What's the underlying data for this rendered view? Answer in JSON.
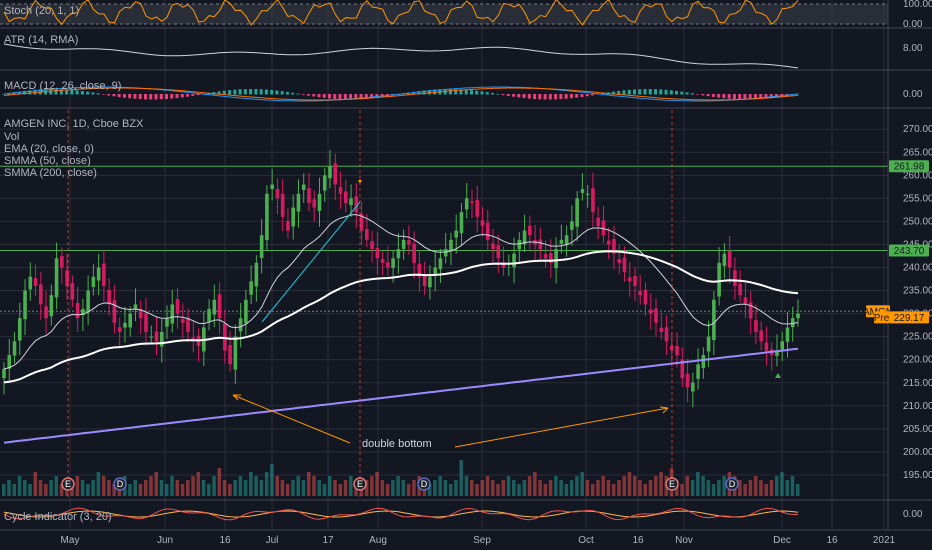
{
  "chart_data": {
    "type": "candlestick",
    "title": "AMGEN INC, 1D, Cboe BZX",
    "symbol": "AMGN",
    "ylim": [
      190,
      272
    ],
    "y_ticks": [
      "270.00",
      "265.00",
      "260.00",
      "255.00",
      "250.00",
      "245.00",
      "240.00",
      "235.00",
      "230.00",
      "225.00",
      "220.00",
      "215.00",
      "210.00",
      "205.00",
      "200.00",
      "195.00"
    ],
    "x_ticks": [
      "May",
      "Jun",
      "16",
      "Jul",
      "17",
      "Aug",
      "Sep",
      "Oct",
      "16",
      "Nov",
      "Dec",
      "16",
      "2021"
    ],
    "price_badges": [
      {
        "label": "261.98",
        "value": 261.98,
        "color": "#4caf50"
      },
      {
        "label": "243.70",
        "value": 243.7,
        "color": "#4caf50"
      },
      {
        "label": "AMGN",
        "value": 230.5,
        "color": "#ff9800"
      },
      {
        "label": "229.17",
        "value": 229.17,
        "color": "#ff9800",
        "prefix": "Pre"
      }
    ],
    "horizontal_levels": [
      261.98,
      243.7
    ],
    "legend": [
      "Vol",
      "EMA (20, close, 0)",
      "SMMA (50, close)",
      "SMMA (200, close)"
    ],
    "annotation": "double bottom",
    "event_markers": [
      "E",
      "D",
      "E",
      "D",
      "E",
      "D"
    ],
    "indicators": [
      {
        "name": "Stoch (20, 1, 1)",
        "ticks": [
          "100.00",
          "0.00"
        ]
      },
      {
        "name": "ATR (14, RMA)",
        "ticks": [
          "8.00"
        ]
      },
      {
        "name": "MACD (12, 26, close, 9)",
        "ticks": [
          "0.00"
        ]
      },
      {
        "name": "Cycle Indicator (3, 20)",
        "ticks": [
          "0.00"
        ]
      }
    ],
    "close_series": [
      218,
      221,
      224,
      229,
      235,
      238,
      236,
      232,
      229,
      234,
      242,
      240,
      236,
      233,
      229,
      231,
      235,
      238,
      240,
      236,
      232,
      228,
      226,
      228,
      230,
      232,
      229,
      226,
      225,
      224,
      226,
      229,
      232,
      230,
      228,
      226,
      224,
      223,
      227,
      231,
      233,
      229,
      222,
      219,
      225,
      229,
      233,
      237,
      241,
      247,
      256,
      258,
      255,
      251,
      248,
      253,
      256,
      258,
      254,
      253,
      256,
      260,
      262,
      258,
      256,
      254,
      255,
      252,
      248,
      246,
      244,
      242,
      241,
      240,
      242,
      244,
      246,
      245,
      241,
      238,
      236,
      238,
      240,
      242,
      244,
      246,
      248,
      252,
      255,
      254,
      251,
      249,
      246,
      244,
      242,
      240,
      241,
      243,
      246,
      248,
      247,
      245,
      244,
      242,
      241,
      244,
      246,
      247,
      250,
      255,
      257,
      256,
      252,
      249,
      247,
      245,
      243,
      241,
      239,
      237,
      236,
      234,
      232,
      230,
      228,
      226,
      224,
      222,
      221,
      216,
      214,
      215,
      219,
      221,
      225,
      233,
      241,
      243,
      240,
      236,
      234,
      232,
      229,
      226,
      224,
      222,
      221,
      222,
      224,
      227,
      229,
      230
    ],
    "volume_series": [
      3,
      4,
      3,
      5,
      4,
      3,
      6,
      4,
      3,
      4,
      5,
      3,
      4,
      3,
      5,
      4,
      3,
      4,
      6,
      5,
      4,
      3,
      4,
      5,
      3,
      4,
      3,
      4,
      5,
      6,
      4,
      3,
      5,
      4,
      3,
      4,
      5,
      6,
      4,
      3,
      5,
      7,
      4,
      3,
      4,
      5,
      4,
      6,
      5,
      4,
      6,
      8,
      5,
      4,
      3,
      4,
      5,
      4,
      6,
      5,
      4,
      3,
      5,
      4,
      3,
      4,
      5,
      4,
      3,
      4,
      5,
      6,
      4,
      3,
      4,
      5,
      4,
      3,
      4,
      5,
      4,
      3,
      4,
      5,
      4,
      3,
      4,
      9,
      5,
      4,
      3,
      4,
      5,
      4,
      3,
      4,
      5,
      4,
      3,
      4,
      5,
      6,
      4,
      3,
      4,
      5,
      4,
      3,
      4,
      5,
      6,
      4,
      3,
      4,
      5,
      4,
      3,
      4,
      5,
      6,
      5,
      4,
      3,
      4,
      5,
      6,
      5,
      7,
      4,
      3,
      5,
      4,
      6,
      5,
      4,
      3,
      4,
      5,
      6,
      5,
      4,
      3,
      4,
      5,
      4,
      3,
      4,
      5,
      6,
      4,
      5,
      3
    ]
  }
}
